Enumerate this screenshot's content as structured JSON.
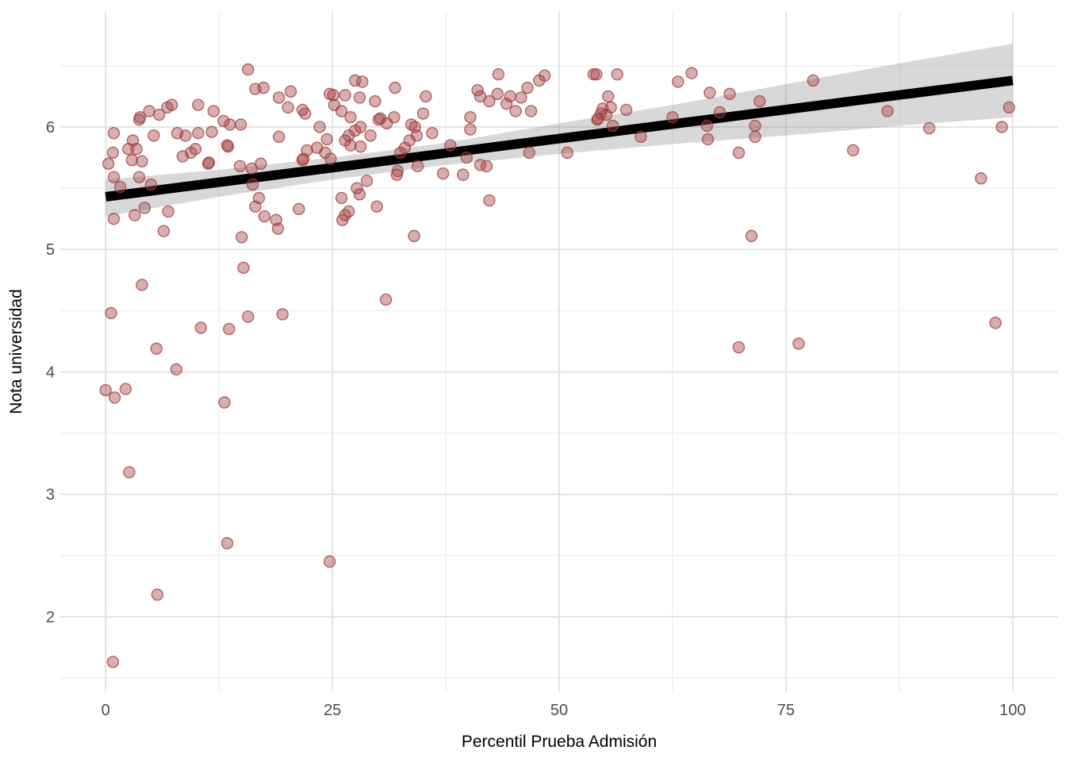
{
  "chart_data": {
    "type": "scatter",
    "title": "",
    "xlabel": "Percentil Prueba Admisión",
    "ylabel": "Nota universidad",
    "x_tick_labels": [
      "0",
      "25",
      "50",
      "75",
      "100"
    ],
    "x_tick_values": [
      0,
      25,
      50,
      75,
      100
    ],
    "x_minor_gridlines": [
      12.5,
      37.5,
      62.5,
      87.5
    ],
    "y_tick_labels": [
      "2",
      "3",
      "4",
      "5",
      "6"
    ],
    "y_tick_values": [
      2,
      3,
      4,
      5,
      6
    ],
    "y_minor_gridlines": [
      1.5,
      2.5,
      3.5,
      4.5,
      5.5,
      6.5
    ],
    "xlim": [
      -5,
      105
    ],
    "ylim": [
      1.39,
      6.94
    ],
    "grid": "on",
    "legend": "none",
    "regression_line": {
      "x": [
        0,
        100
      ],
      "y": [
        5.43,
        6.38
      ]
    },
    "confidence_band": {
      "x": [
        0,
        12.5,
        25,
        37.5,
        50,
        62.5,
        75,
        87.5,
        100
      ],
      "lower": [
        5.27,
        5.43,
        5.57,
        5.69,
        5.78,
        5.86,
        5.93,
        6.01,
        6.08
      ],
      "upper": [
        5.57,
        5.65,
        5.75,
        5.87,
        6.03,
        6.18,
        6.35,
        6.52,
        6.68
      ]
    },
    "points": [
      [
        0.8,
        1.63
      ],
      [
        5.7,
        2.18
      ],
      [
        24.7,
        2.45
      ],
      [
        13.4,
        2.6
      ],
      [
        2.6,
        3.18
      ],
      [
        13.1,
        3.75
      ],
      [
        1.0,
        3.79
      ],
      [
        0.0,
        3.85
      ],
      [
        2.2,
        3.86
      ],
      [
        7.8,
        4.02
      ],
      [
        5.6,
        4.19
      ],
      [
        69.8,
        4.2
      ],
      [
        76.4,
        4.23
      ],
      [
        13.6,
        4.35
      ],
      [
        10.5,
        4.36
      ],
      [
        98.1,
        4.4
      ],
      [
        15.7,
        4.45
      ],
      [
        19.5,
        4.47
      ],
      [
        0.6,
        4.48
      ],
      [
        30.9,
        4.59
      ],
      [
        4.0,
        4.71
      ],
      [
        15.2,
        4.85
      ],
      [
        15.0,
        5.1
      ],
      [
        34.0,
        5.11
      ],
      [
        71.2,
        5.11
      ],
      [
        6.4,
        5.15
      ],
      [
        19.0,
        5.17
      ],
      [
        18.8,
        5.24
      ],
      [
        26.1,
        5.24
      ],
      [
        0.9,
        5.25
      ],
      [
        17.5,
        5.27
      ],
      [
        3.2,
        5.28
      ],
      [
        26.4,
        5.28
      ],
      [
        6.9,
        5.31
      ],
      [
        26.8,
        5.31
      ],
      [
        21.3,
        5.33
      ],
      [
        4.3,
        5.34
      ],
      [
        16.5,
        5.35
      ],
      [
        29.9,
        5.35
      ],
      [
        42.3,
        5.4
      ],
      [
        16.9,
        5.42
      ],
      [
        26.0,
        5.42
      ],
      [
        28.0,
        5.45
      ],
      [
        27.7,
        5.5
      ],
      [
        1.6,
        5.51
      ],
      [
        5.0,
        5.53
      ],
      [
        16.2,
        5.53
      ],
      [
        28.8,
        5.56
      ],
      [
        96.5,
        5.58
      ],
      [
        0.9,
        5.59
      ],
      [
        3.7,
        5.59
      ],
      [
        32.1,
        5.61
      ],
      [
        39.4,
        5.61
      ],
      [
        37.2,
        5.62
      ],
      [
        32.2,
        5.64
      ],
      [
        16.1,
        5.66
      ],
      [
        14.8,
        5.68
      ],
      [
        34.4,
        5.68
      ],
      [
        42.0,
        5.68
      ],
      [
        41.3,
        5.69
      ],
      [
        0.3,
        5.7
      ],
      [
        11.3,
        5.7
      ],
      [
        17.1,
        5.7
      ],
      [
        11.4,
        5.71
      ],
      [
        4.0,
        5.72
      ],
      [
        2.9,
        5.73
      ],
      [
        21.7,
        5.73
      ],
      [
        21.8,
        5.74
      ],
      [
        24.8,
        5.74
      ],
      [
        39.8,
        5.75
      ],
      [
        8.5,
        5.76
      ],
      [
        0.8,
        5.79
      ],
      [
        9.4,
        5.79
      ],
      [
        24.2,
        5.79
      ],
      [
        32.5,
        5.79
      ],
      [
        46.7,
        5.79
      ],
      [
        50.9,
        5.79
      ],
      [
        69.8,
        5.79
      ],
      [
        22.2,
        5.81
      ],
      [
        82.4,
        5.81
      ],
      [
        2.5,
        5.82
      ],
      [
        3.4,
        5.82
      ],
      [
        9.9,
        5.82
      ],
      [
        23.3,
        5.83
      ],
      [
        33.0,
        5.83
      ],
      [
        28.1,
        5.84
      ],
      [
        13.5,
        5.84
      ],
      [
        13.4,
        5.85
      ],
      [
        27.0,
        5.85
      ],
      [
        38.0,
        5.85
      ],
      [
        3.0,
        5.89
      ],
      [
        26.4,
        5.89
      ],
      [
        33.5,
        5.89
      ],
      [
        24.4,
        5.9
      ],
      [
        66.4,
        5.9
      ],
      [
        19.1,
        5.92
      ],
      [
        59.0,
        5.92
      ],
      [
        71.6,
        5.92
      ],
      [
        5.3,
        5.93
      ],
      [
        8.8,
        5.93
      ],
      [
        26.8,
        5.93
      ],
      [
        29.2,
        5.93
      ],
      [
        34.3,
        5.93
      ],
      [
        0.9,
        5.95
      ],
      [
        7.9,
        5.95
      ],
      [
        10.2,
        5.95
      ],
      [
        36.0,
        5.95
      ],
      [
        11.7,
        5.96
      ],
      [
        27.5,
        5.97
      ],
      [
        40.2,
        5.98
      ],
      [
        90.8,
        5.99
      ],
      [
        23.6,
        6.0
      ],
      [
        28.1,
        6.0
      ],
      [
        34.1,
        6.0
      ],
      [
        98.8,
        6.0
      ],
      [
        55.9,
        6.01
      ],
      [
        66.3,
        6.01
      ],
      [
        71.6,
        6.01
      ],
      [
        13.7,
        6.02
      ],
      [
        14.9,
        6.02
      ],
      [
        33.7,
        6.02
      ],
      [
        31.0,
        6.03
      ],
      [
        13.0,
        6.05
      ],
      [
        3.7,
        6.06
      ],
      [
        30.1,
        6.06
      ],
      [
        54.2,
        6.06
      ],
      [
        54.3,
        6.07
      ],
      [
        30.3,
        6.07
      ],
      [
        3.8,
        6.08
      ],
      [
        27.0,
        6.08
      ],
      [
        31.8,
        6.08
      ],
      [
        40.2,
        6.08
      ],
      [
        62.5,
        6.08
      ],
      [
        5.9,
        6.1
      ],
      [
        55.2,
        6.1
      ],
      [
        22.0,
        6.11
      ],
      [
        35.0,
        6.11
      ],
      [
        54.6,
        6.11
      ],
      [
        67.7,
        6.12
      ],
      [
        4.8,
        6.13
      ],
      [
        11.9,
        6.13
      ],
      [
        26.0,
        6.13
      ],
      [
        45.2,
        6.13
      ],
      [
        46.9,
        6.13
      ],
      [
        86.2,
        6.13
      ],
      [
        21.7,
        6.14
      ],
      [
        57.4,
        6.14
      ],
      [
        54.8,
        6.15
      ],
      [
        6.8,
        6.16
      ],
      [
        20.1,
        6.16
      ],
      [
        55.7,
        6.16
      ],
      [
        99.6,
        6.16
      ],
      [
        7.3,
        6.18
      ],
      [
        10.2,
        6.18
      ],
      [
        25.2,
        6.18
      ],
      [
        44.2,
        6.19
      ],
      [
        29.7,
        6.21
      ],
      [
        42.3,
        6.21
      ],
      [
        72.1,
        6.21
      ],
      [
        19.1,
        6.24
      ],
      [
        28.0,
        6.24
      ],
      [
        45.8,
        6.24
      ],
      [
        35.3,
        6.25
      ],
      [
        41.3,
        6.25
      ],
      [
        44.6,
        6.25
      ],
      [
        55.4,
        6.25
      ],
      [
        25.1,
        6.26
      ],
      [
        26.4,
        6.26
      ],
      [
        24.7,
        6.27
      ],
      [
        43.2,
        6.27
      ],
      [
        68.8,
        6.27
      ],
      [
        66.6,
        6.28
      ],
      [
        20.4,
        6.29
      ],
      [
        41.0,
        6.3
      ],
      [
        16.5,
        6.31
      ],
      [
        17.4,
        6.32
      ],
      [
        31.9,
        6.32
      ],
      [
        46.5,
        6.32
      ],
      [
        28.3,
        6.37
      ],
      [
        63.1,
        6.37
      ],
      [
        27.5,
        6.38
      ],
      [
        47.8,
        6.38
      ],
      [
        78.0,
        6.38
      ],
      [
        48.4,
        6.42
      ],
      [
        43.3,
        6.43
      ],
      [
        53.8,
        6.43
      ],
      [
        54.1,
        6.43
      ],
      [
        56.4,
        6.43
      ],
      [
        64.6,
        6.44
      ],
      [
        15.7,
        6.47
      ]
    ],
    "colors": {
      "background": "#ffffff",
      "point_fill": "#a04040",
      "point_stroke": "#a03c3c",
      "regression_line": "#000000",
      "confidence_band": "#999999",
      "grid_major": "#e3e3e3",
      "grid_minor": "#efefef",
      "tick_label": "#4d4d4d",
      "axis_title": "#000000"
    }
  }
}
